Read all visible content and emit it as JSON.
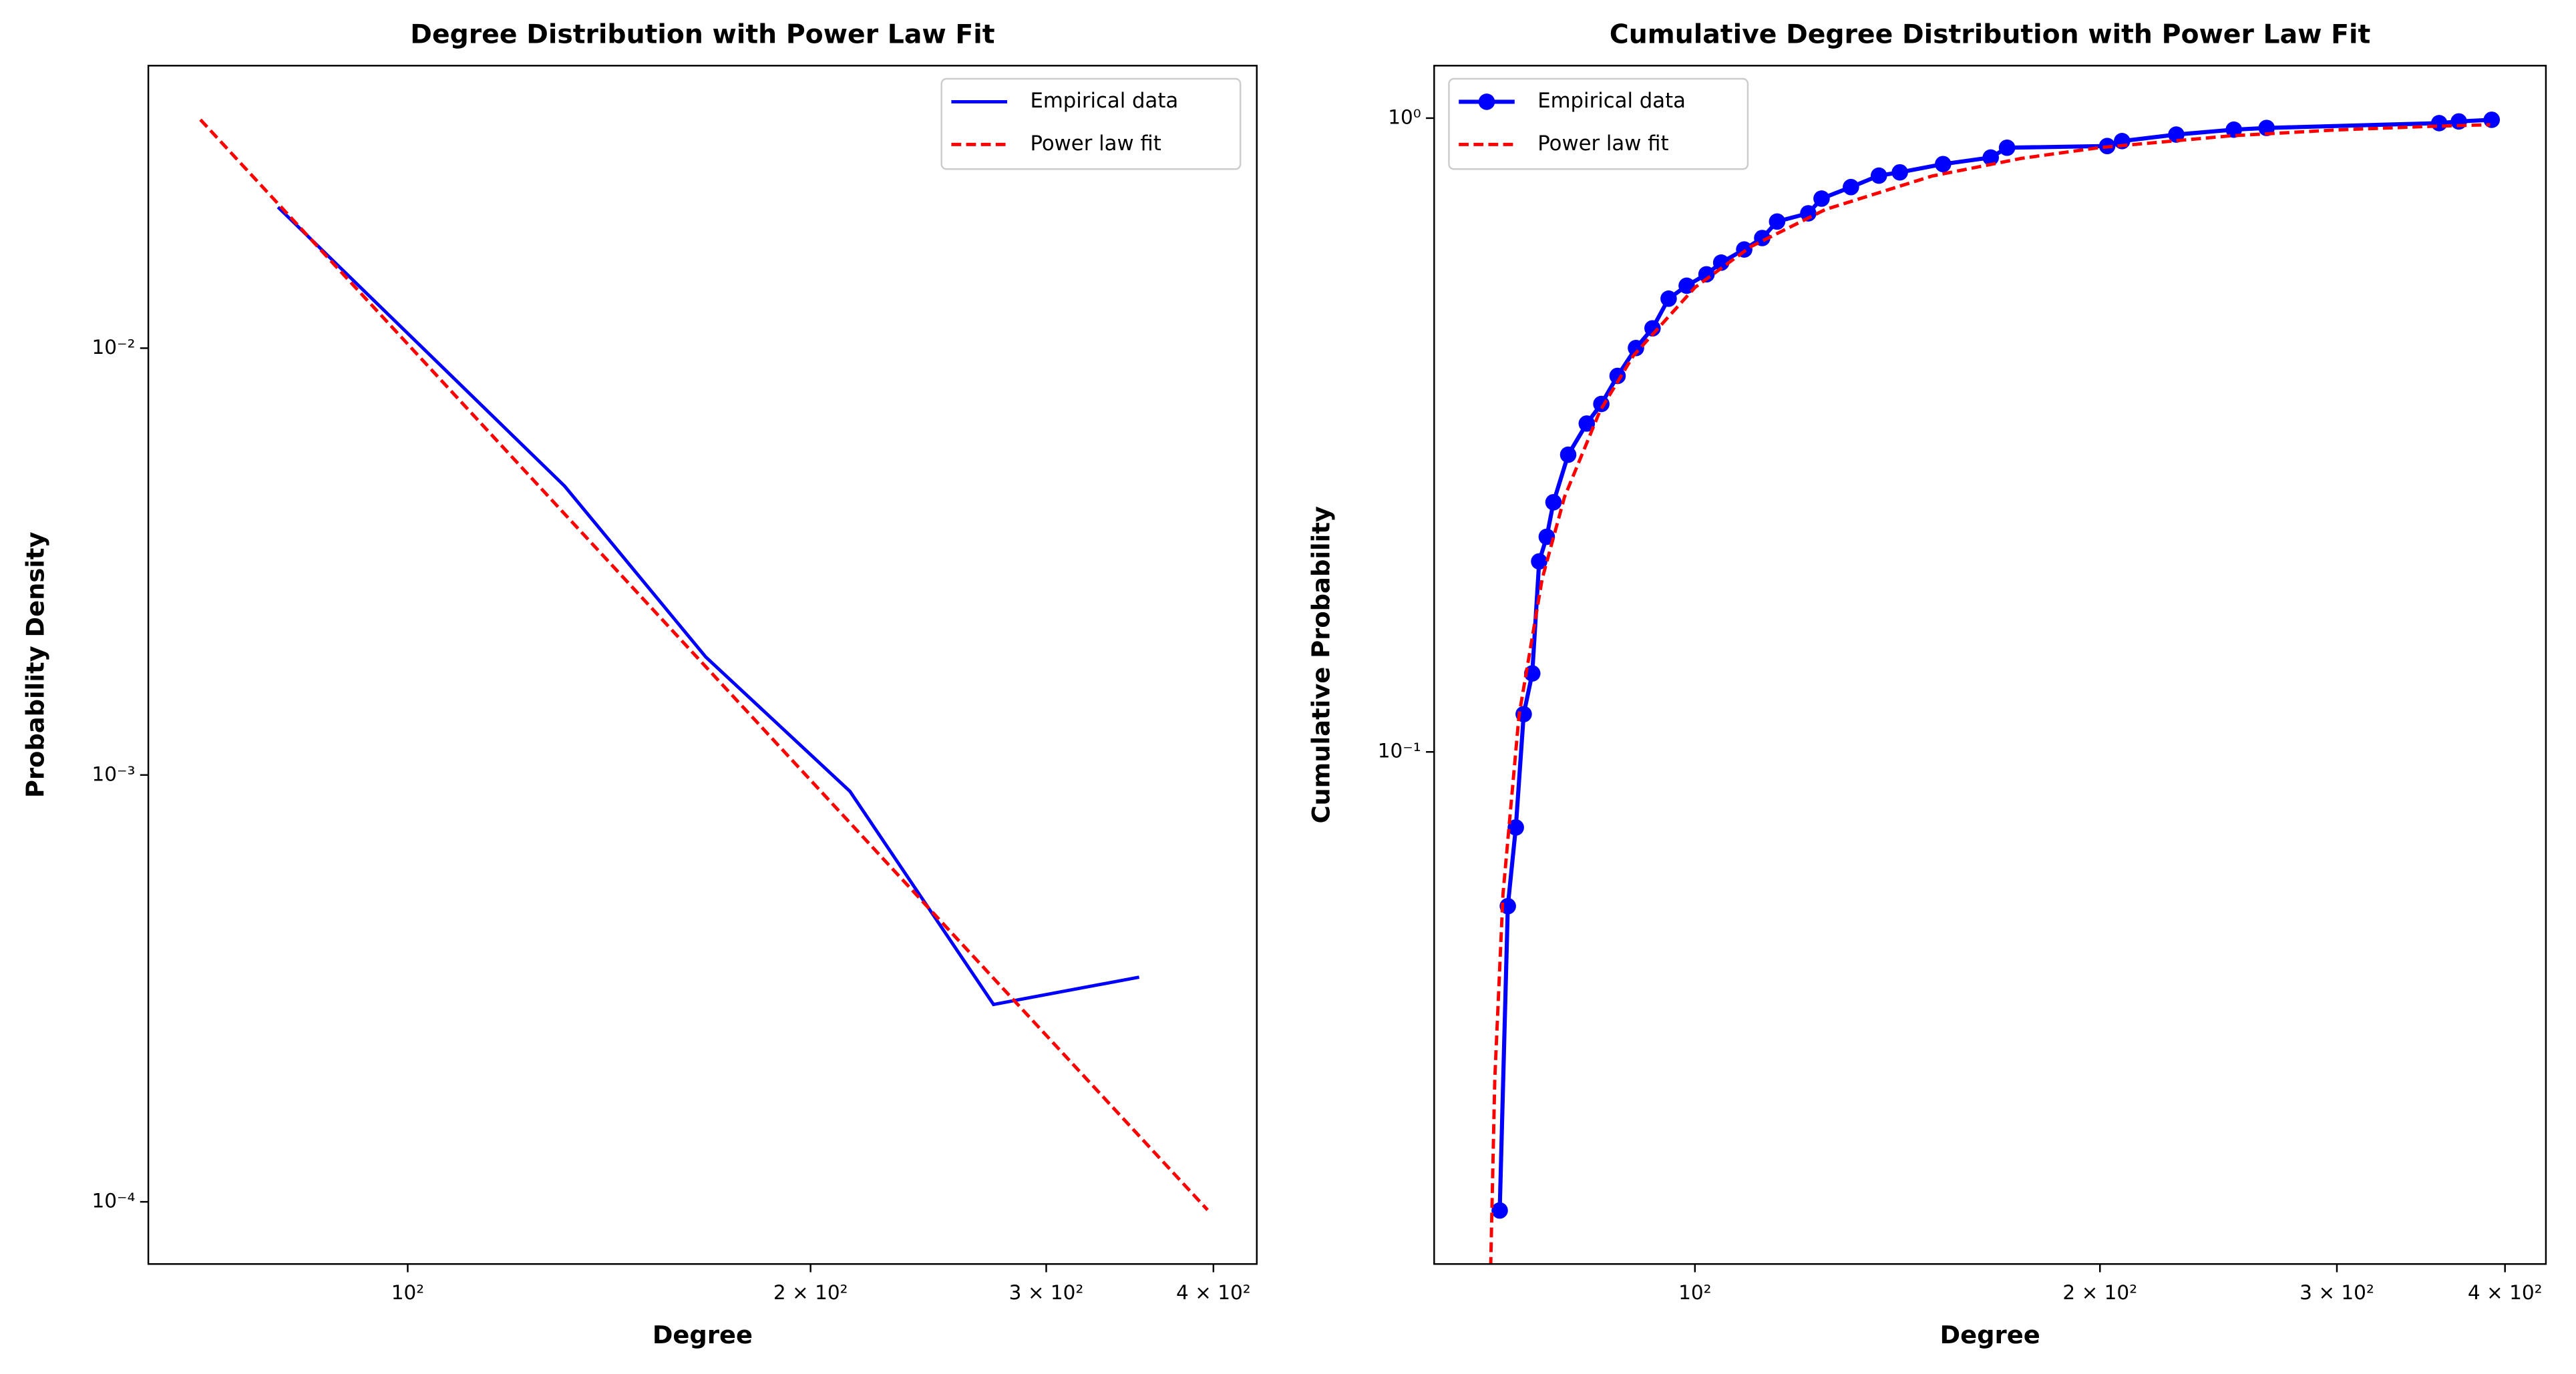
{
  "chart_data": [
    {
      "type": "line",
      "title": "Degree Distribution with Power Law Fit",
      "xlabel": "Degree",
      "ylabel": "Probability Density",
      "xlog": true,
      "ylog": true,
      "xlim": [
        64,
        431
      ],
      "ylim": [
        7.15e-05,
        0.0459
      ],
      "legend": "upper right",
      "xticks": [
        {
          "value": 100,
          "label": "10²"
        },
        {
          "value": 200,
          "label": "2 × 10²"
        },
        {
          "value": 300,
          "label": "3 × 10²"
        },
        {
          "value": 400,
          "label": "4 × 10²"
        }
      ],
      "yticks": [
        {
          "value": 0.0001,
          "label": "10⁻⁴"
        },
        {
          "value": 0.001,
          "label": "10⁻³"
        },
        {
          "value": 0.01,
          "label": "10⁻²"
        }
      ],
      "series": [
        {
          "name": "Empirical data",
          "color": "#0000ff",
          "linestyle": "solid",
          "x": [
            80,
            131,
            167,
            214,
            274,
            352
          ],
          "values": [
            0.0214,
            0.00475,
            0.00189,
            0.000916,
            0.00029,
            0.000336
          ]
        },
        {
          "name": "Power law fit",
          "color": "#ff0000",
          "linestyle": "dashed",
          "x": [
            70,
            396
          ],
          "values": [
            0.0343,
            9.57e-05
          ]
        }
      ]
    },
    {
      "type": "line",
      "title": "Cumulative Degree Distribution with Power Law Fit",
      "xlabel": "Degree",
      "ylabel": "Cumulative Probability",
      "xlog": true,
      "ylog": true,
      "xlim": [
        64,
        429
      ],
      "ylim": [
        0.01556,
        1.21
      ],
      "legend": "upper left",
      "xticks": [
        {
          "value": 100,
          "label": "10²"
        },
        {
          "value": 200,
          "label": "2 × 10²"
        },
        {
          "value": 300,
          "label": "3 × 10²"
        },
        {
          "value": 400,
          "label": "4 × 10²"
        }
      ],
      "yticks": [
        {
          "value": 0.1,
          "label": "10⁻¹"
        },
        {
          "value": 1,
          "label": "10⁰"
        }
      ],
      "series": [
        {
          "name": "Empirical data",
          "color": "#0000ff",
          "linestyle": "solid",
          "marker": "o",
          "x": [
            71.6,
            72.6,
            73.6,
            74.6,
            75.7,
            76.6,
            77.6,
            78.5,
            80.5,
            83.1,
            85.2,
            87.6,
            90.4,
            93.0,
            95.6,
            98.6,
            102,
            104.6,
            108.8,
            112.2,
            115.1,
            121.4,
            124.2,
            130.6,
            137,
            142,
            152.9,
            165.9,
            170.6,
            202.5,
            207.7,
            227.9,
            251.5,
            266,
            357.4,
            369.6,
            391
          ],
          "values": [
            0.0189,
            0.0571,
            0.076,
            0.1147,
            0.133,
            0.1998,
            0.2185,
            0.2477,
            0.2944,
            0.3297,
            0.354,
            0.392,
            0.4338,
            0.466,
            0.519,
            0.544,
            0.567,
            0.5916,
            0.6205,
            0.6469,
            0.6868,
            0.7076,
            0.7465,
            0.7784,
            0.8115,
            0.8212,
            0.8462,
            0.8666,
            0.8981,
            0.9036,
            0.92,
            0.942,
            0.959,
            0.965,
            0.982,
            0.988,
            0.994
          ]
        },
        {
          "name": "Power law fit",
          "color": "#ff0000",
          "linestyle": "dashed",
          "x": [
            70.5,
            71,
            72,
            74,
            77,
            80,
            85,
            90,
            100,
            110,
            125,
            150,
            175,
            200,
            250,
            300,
            350,
            390
          ],
          "values": [
            0.0154,
            0.0305,
            0.0596,
            0.1141,
            0.1876,
            0.2526,
            0.3451,
            0.4218,
            0.5405,
            0.6267,
            0.7175,
            0.8101,
            0.8643,
            0.8986,
            0.9377,
            0.9581,
            0.9701,
            0.9763
          ]
        }
      ]
    }
  ]
}
